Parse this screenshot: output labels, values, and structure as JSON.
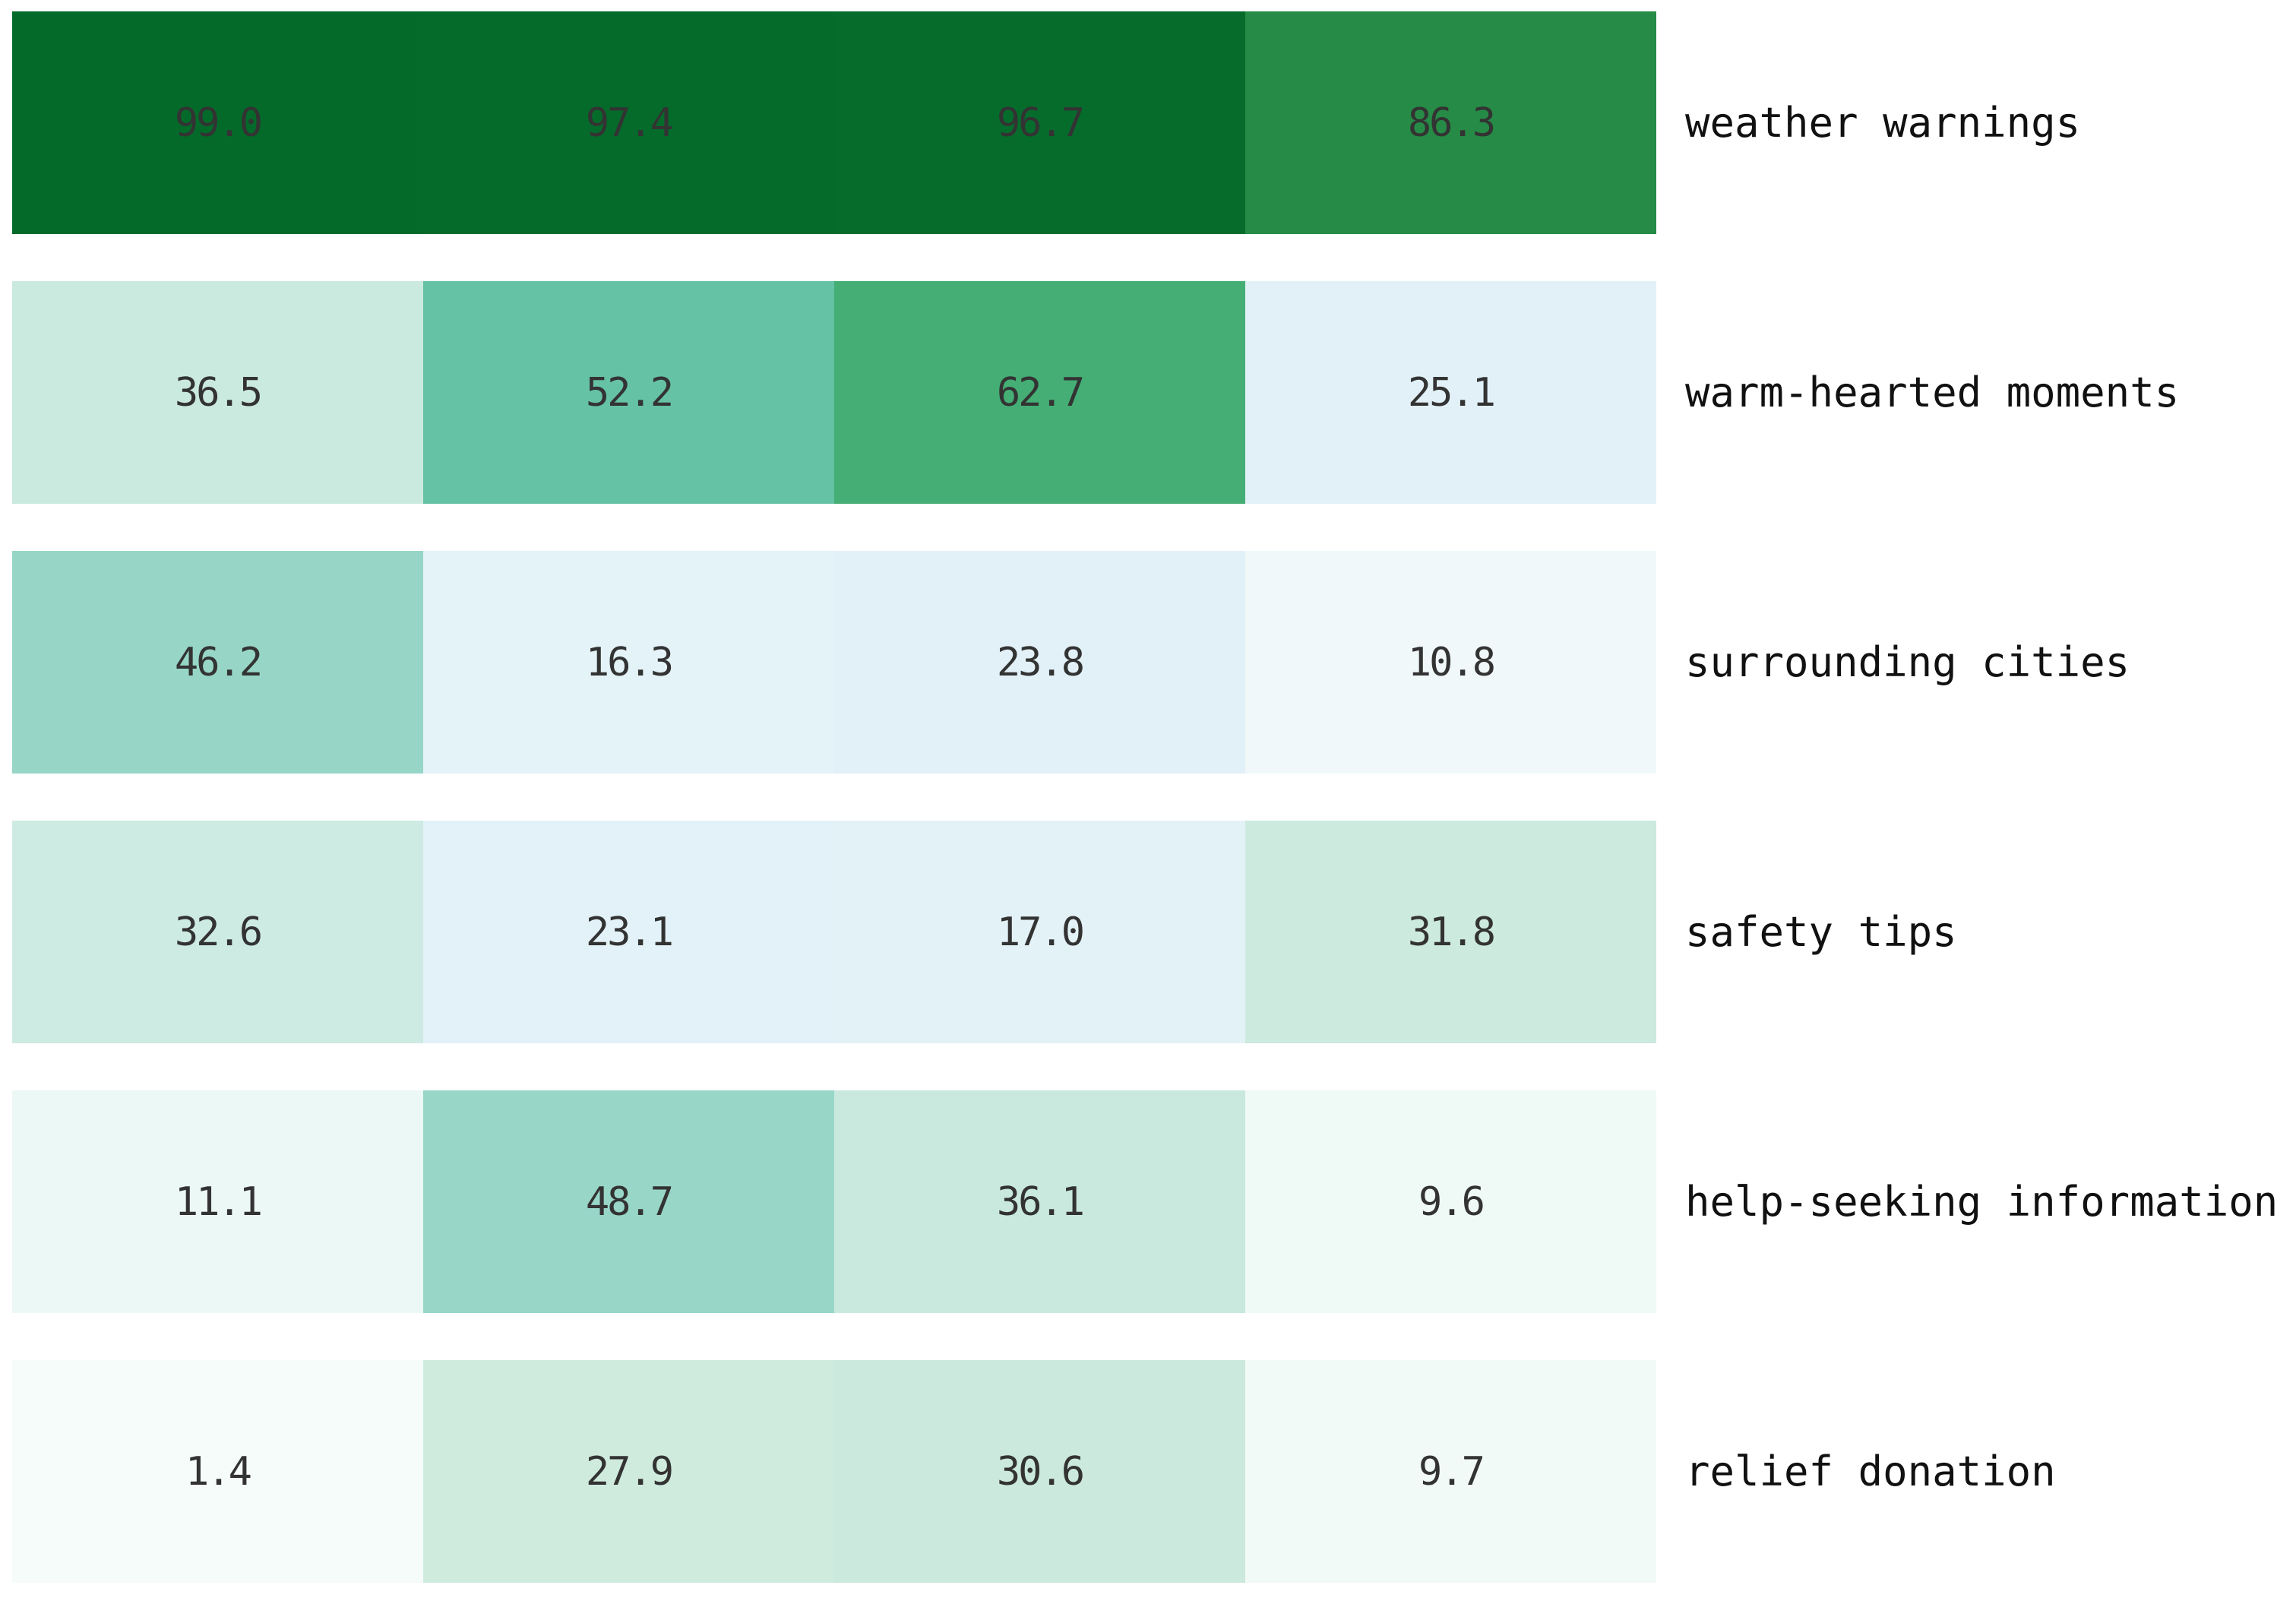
{
  "chart_data": {
    "type": "heatmap",
    "title": "",
    "n_columns": 4,
    "column_labels": [],
    "colormap": "BuGn",
    "background": "#ffffff",
    "value_text_color": "#333333",
    "label_text_color": "#111111",
    "categories": [
      "weather warnings",
      "warm-hearted moments",
      "surrounding cities",
      "safety tips",
      "help-seeking information",
      "relief donation"
    ],
    "rows": [
      {
        "label": "weather warnings",
        "values": [
          99.0,
          97.4,
          96.7,
          86.3
        ],
        "display": [
          "99.0",
          "97.4",
          "96.7",
          "86.3"
        ],
        "colors": [
          "#046a2a",
          "#056b2b",
          "#066c2c",
          "#268b46"
        ]
      },
      {
        "label": "warm-hearted moments",
        "values": [
          36.5,
          52.2,
          62.7,
          25.1
        ],
        "display": [
          "36.5",
          "52.2",
          "62.7",
          "25.1"
        ],
        "colors": [
          "#cbeadf",
          "#65c2a4",
          "#44ae75",
          "#e2f1f8"
        ]
      },
      {
        "label": "surrounding cities",
        "values": [
          46.2,
          16.3,
          23.8,
          10.8
        ],
        "display": [
          "46.2",
          "16.3",
          "23.8",
          "10.8"
        ],
        "colors": [
          "#97d6c7",
          "#e3f3f8",
          "#e2f1f7",
          "#f0f8fa"
        ]
      },
      {
        "label": "safety tips",
        "values": [
          32.6,
          23.1,
          17.0,
          31.8
        ],
        "display": [
          "32.6",
          "23.1",
          "17.0",
          "31.8"
        ],
        "colors": [
          "#cdebe2",
          "#e2f2f8",
          "#e3f2f7",
          "#cdeade"
        ]
      },
      {
        "label": "help-seeking information",
        "values": [
          11.1,
          48.7,
          36.1,
          9.6
        ],
        "display": [
          "11.1",
          "48.7",
          "36.1",
          "9.6"
        ],
        "colors": [
          "#ecf8f5",
          "#98d6c8",
          "#c9e9df",
          "#eff9f6"
        ]
      },
      {
        "label": "relief donation",
        "values": [
          1.4,
          27.9,
          30.6,
          9.7
        ],
        "display": [
          "1.4",
          "27.9",
          "30.6",
          "9.7"
        ],
        "colors": [
          "#f5fcfa",
          "#cfebde",
          "#cbe9dc",
          "#f1faf7"
        ]
      }
    ]
  }
}
